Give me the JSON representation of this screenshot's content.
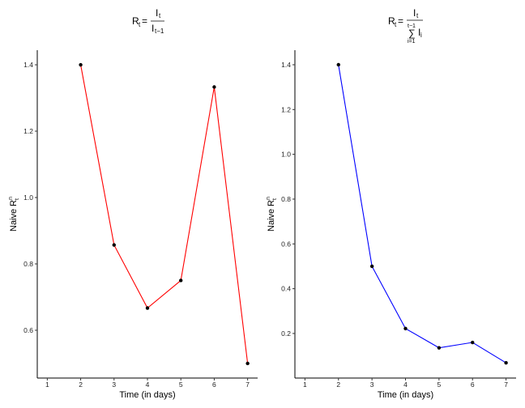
{
  "chart_data": [
    {
      "type": "line",
      "title": {
        "lhs": "R",
        "lhs_sub": "t",
        "eq": "=",
        "num": "I",
        "num_sub": "t",
        "den": "I",
        "den_sub": "t−1"
      },
      "xlabel": "Time (in days)",
      "ylabel": {
        "base": "Naive R",
        "sub": "t",
        "sup": "n"
      },
      "x": [
        2,
        3,
        4,
        5,
        6,
        7
      ],
      "y": [
        1.4,
        0.857,
        0.667,
        0.75,
        1.333,
        0.5
      ],
      "xticks": [
        1,
        2,
        3,
        4,
        5,
        6,
        7
      ],
      "yticks": [
        0.6,
        0.8,
        1.0,
        1.2,
        1.4
      ],
      "ytick_labels": [
        "0.6",
        "0.8",
        "1.0",
        "1.2",
        "1.4"
      ],
      "xlim": [
        0.7,
        7.3
      ],
      "ylim": [
        0.456,
        1.444
      ],
      "color": "#ff0000",
      "grid": false
    },
    {
      "type": "line",
      "title": {
        "lhs": "R",
        "lhs_sub": "t",
        "eq": "=",
        "num": "I",
        "num_sub": "t",
        "sum_upper": "t−1",
        "sigma": "∑",
        "sum_lower": "i=1",
        "den": "I",
        "den_sub": "i"
      },
      "xlabel": "Time (in days)",
      "ylabel": {
        "base": "Naive R",
        "sub": "t",
        "sup": "n"
      },
      "x": [
        2,
        3,
        4,
        5,
        6,
        7
      ],
      "y": [
        1.4,
        0.5,
        0.222,
        0.136,
        0.16,
        0.069
      ],
      "xticks": [
        1,
        2,
        3,
        4,
        5,
        6,
        7
      ],
      "yticks": [
        0.2,
        0.4,
        0.6,
        0.8,
        1.0,
        1.2,
        1.4
      ],
      "ytick_labels": [
        "0.2",
        "0.4",
        "0.6",
        "0.8",
        "1.0",
        "1.2",
        "1.4"
      ],
      "xlim": [
        0.7,
        7.3
      ],
      "ylim": [
        0.001,
        1.465
      ],
      "color": "#0000ff",
      "grid": false
    }
  ]
}
